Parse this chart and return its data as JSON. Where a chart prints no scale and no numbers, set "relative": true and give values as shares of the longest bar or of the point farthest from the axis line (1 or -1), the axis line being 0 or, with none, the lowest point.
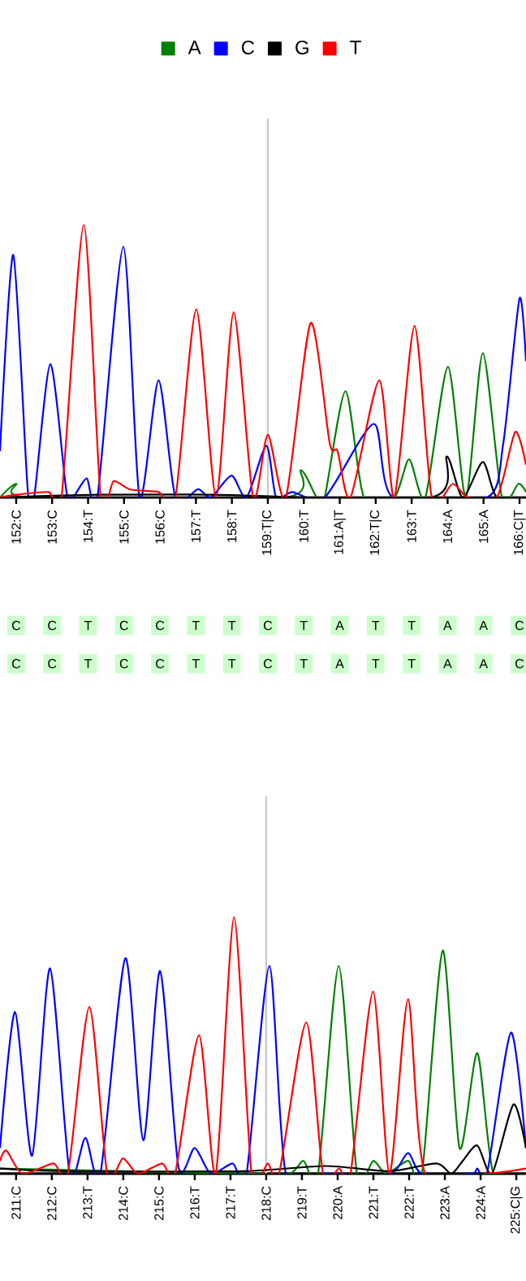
{
  "chart_data": [
    {
      "type": "line",
      "relative": true,
      "legend": "top",
      "xlim": [
        151.55,
        166.18
      ],
      "xticks": [
        {
          "value": 152,
          "label": "152:C"
        },
        {
          "value": 153,
          "label": "153:C"
        },
        {
          "value": 154,
          "label": "154:T"
        },
        {
          "value": 155,
          "label": "155:C"
        },
        {
          "value": 156,
          "label": "156:C"
        },
        {
          "value": 157,
          "label": "157:T"
        },
        {
          "value": 158,
          "label": "158:T"
        },
        {
          "value": 159,
          "label": "159:T|C"
        },
        {
          "value": 160,
          "label": "160:T"
        },
        {
          "value": 161,
          "label": "161:A|T"
        },
        {
          "value": 162,
          "label": "162:T|C"
        },
        {
          "value": 163,
          "label": "163:T"
        },
        {
          "value": 164,
          "label": "164:A"
        },
        {
          "value": 165,
          "label": "165:A"
        },
        {
          "value": 166,
          "label": "166:C|T"
        }
      ],
      "ref_lines": [
        {
          "axis": "x",
          "value": 159,
          "color": "#c8c8c8"
        }
      ],
      "series": [
        {
          "name": "A",
          "color": "#008000",
          "x": [
            151.55,
            152,
            152.36,
            159.45,
            159.92,
            160.36,
            160.58,
            161.16,
            161.67,
            162.52,
            162.93,
            163.38,
            164.01,
            164.51,
            164.98,
            165.51,
            165.97,
            166.18
          ],
          "values": [
            0,
            0.05,
            0,
            0,
            0.1,
            0,
            0,
            0.39,
            0,
            0,
            0.14,
            0,
            0.48,
            0,
            0.53,
            0,
            0.05,
            0.02
          ]
        },
        {
          "name": "C",
          "color": "#0000ff",
          "x": [
            151.55,
            151.92,
            152.32,
            152.5,
            152.95,
            153.4,
            153.58,
            153.96,
            154.26,
            154.98,
            155.43,
            155.96,
            156.43,
            157.06,
            157.42,
            157.99,
            158.41,
            158.96,
            159.23,
            159.68,
            160.58,
            161.95,
            162.48,
            165.1,
            165.55,
            166.0,
            166.18
          ],
          "values": [
            0.17,
            0.89,
            0.03,
            0,
            0.49,
            0.02,
            0,
            0.07,
            0,
            0.92,
            0,
            0.43,
            0,
            0.03,
            0,
            0.08,
            0,
            0.19,
            0,
            0.02,
            0,
            0.27,
            0,
            0,
            0.2,
            0.73,
            0.5
          ]
        },
        {
          "name": "G",
          "color": "#000000",
          "x": [
            151.55,
            154.26,
            157.42,
            163.52,
            163.98,
            164.42,
            164.98,
            165.37,
            166.18
          ],
          "values": [
            0,
            0.01,
            0.01,
            0,
            0.15,
            0,
            0.13,
            0,
            0
          ]
        },
        {
          "name": "T",
          "color": "#ff0000",
          "x": [
            151.55,
            152,
            152.9,
            153.26,
            153.88,
            154.35,
            154.71,
            155.16,
            155.96,
            156.43,
            157.01,
            157.56,
            158.05,
            158.59,
            159.0,
            159.5,
            160.19,
            160.72,
            160.94,
            161.3,
            162.1,
            162.52,
            163.08,
            163.56,
            164.14,
            164.56,
            165.37,
            165.88,
            166.18
          ],
          "values": [
            0,
            0.01,
            0.02,
            0,
            1.0,
            0,
            0.06,
            0.03,
            0.02,
            0,
            0.69,
            0,
            0.68,
            0,
            0.23,
            0,
            0.64,
            0.2,
            0.17,
            0,
            0.43,
            0,
            0.63,
            0,
            0.05,
            0,
            0,
            0.24,
            0.12
          ]
        }
      ]
    },
    {
      "type": "other",
      "annotations": [
        "C",
        "C",
        "T",
        "C",
        "C",
        "T",
        "T",
        "C",
        "T",
        "A",
        "T",
        "T",
        "A",
        "A",
        "C",
        "C",
        "C",
        "T",
        "C",
        "C",
        "T",
        "T",
        "C",
        "T",
        "A",
        "T",
        "T",
        "A",
        "A",
        "C"
      ]
    },
    {
      "type": "line",
      "relative": true,
      "xlim": [
        210.55,
        225.27
      ],
      "xticks": [
        {
          "value": 211,
          "label": "211:C"
        },
        {
          "value": 212,
          "label": "212:C"
        },
        {
          "value": 213,
          "label": "213:T"
        },
        {
          "value": 214,
          "label": "214:C"
        },
        {
          "value": 215,
          "label": "215:C"
        },
        {
          "value": 216,
          "label": "216:T"
        },
        {
          "value": 217,
          "label": "217:T"
        },
        {
          "value": 218,
          "label": "218:C"
        },
        {
          "value": 219,
          "label": "219:T"
        },
        {
          "value": 220,
          "label": "220:A"
        },
        {
          "value": 221,
          "label": "221:T"
        },
        {
          "value": 222,
          "label": "222:T"
        },
        {
          "value": 223,
          "label": "223:A"
        },
        {
          "value": 224,
          "label": "224:A"
        },
        {
          "value": 225,
          "label": "225:C|G"
        }
      ],
      "ref_lines": [
        {
          "axis": "x",
          "value": 218,
          "color": "#c8c8c8"
        }
      ],
      "series": [
        {
          "color": "#008000",
          "x": [
            210.55,
            217.36,
            218.64,
            219.04,
            219.45,
            220.03,
            220.54,
            221.0,
            221.36,
            221.97,
            222.36,
            222.94,
            223.41,
            223.91,
            224.36,
            225.27
          ],
          "values": [
            0.02,
            0,
            0,
            0.05,
            0,
            0.81,
            0,
            0.05,
            0,
            0.05,
            0,
            0.87,
            0.1,
            0.47,
            0,
            0
          ]
        },
        {
          "color": "#0000ff",
          "x": [
            210.55,
            210.97,
            211.45,
            211.95,
            212.5,
            212.94,
            213.36,
            214.06,
            214.56,
            215.03,
            215.54,
            216.0,
            216.45,
            217.06,
            217.45,
            218.09,
            218.55,
            219.64,
            221.45,
            221.97,
            222.36,
            223.73,
            223.91,
            224.18,
            224.85,
            225.27
          ],
          "values": [
            0.1,
            0.63,
            0.07,
            0.8,
            0,
            0.14,
            0,
            0.84,
            0.13,
            0.79,
            0.03,
            0.1,
            0,
            0.04,
            0,
            0.81,
            0,
            0,
            0,
            0.08,
            0,
            0,
            0.02,
            0,
            0.55,
            0.1
          ]
        },
        {
          "color": "#000000",
          "x": [
            210.55,
            212.36,
            217.36,
            219.64,
            221.45,
            222.76,
            223.18,
            223.5,
            223.91,
            224.32,
            224.92,
            225.27
          ],
          "values": [
            0.02,
            0.01,
            0.01,
            0.03,
            0.01,
            0.04,
            0,
            0.05,
            0.11,
            0,
            0.27,
            0.1
          ]
        },
        {
          "color": "#ff0000",
          "x": [
            210.55,
            210.73,
            211.18,
            212.05,
            212.45,
            213.05,
            213.55,
            213.99,
            214.41,
            215.09,
            215.45,
            216.12,
            216.59,
            217.1,
            217.59,
            218.04,
            218.36,
            219.12,
            219.59,
            220.04,
            220.36,
            220.99,
            221.45,
            221.97,
            222.45,
            224.18,
            225.27
          ],
          "values": [
            0.05,
            0.09,
            0,
            0.04,
            0,
            0.65,
            0,
            0.06,
            0,
            0.04,
            0,
            0.54,
            0,
            1.0,
            0,
            0.04,
            0,
            0.59,
            0,
            0.02,
            0,
            0.71,
            0,
            0.68,
            0,
            0,
            0.02
          ]
        }
      ]
    }
  ]
}
